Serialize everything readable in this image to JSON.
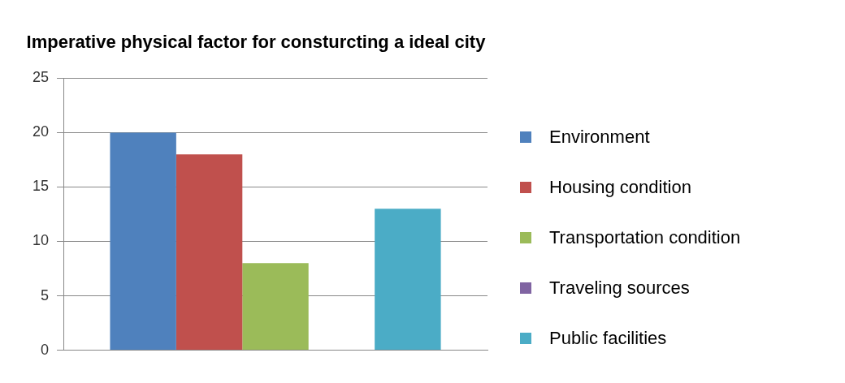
{
  "chart_data": {
    "type": "bar",
    "title": "Imperative physical factor for consturcting a ideal city",
    "categories": [
      null
    ],
    "series": [
      {
        "name": "Environment",
        "color": "#4f81bd",
        "values": [
          20
        ]
      },
      {
        "name": "Housing condition",
        "color": "#c0504d",
        "values": [
          18
        ]
      },
      {
        "name": "Transportation condition",
        "color": "#9bbb59",
        "values": [
          8
        ]
      },
      {
        "name": "Traveling sources",
        "color": "#8064a2",
        "values": [
          0
        ]
      },
      {
        "name": "Public facilities",
        "color": "#4bacc6",
        "values": [
          13
        ]
      }
    ],
    "ylim": [
      0,
      25
    ],
    "yticks": [
      0,
      5,
      10,
      15,
      20,
      25
    ],
    "grid": "y",
    "legend": "right"
  }
}
